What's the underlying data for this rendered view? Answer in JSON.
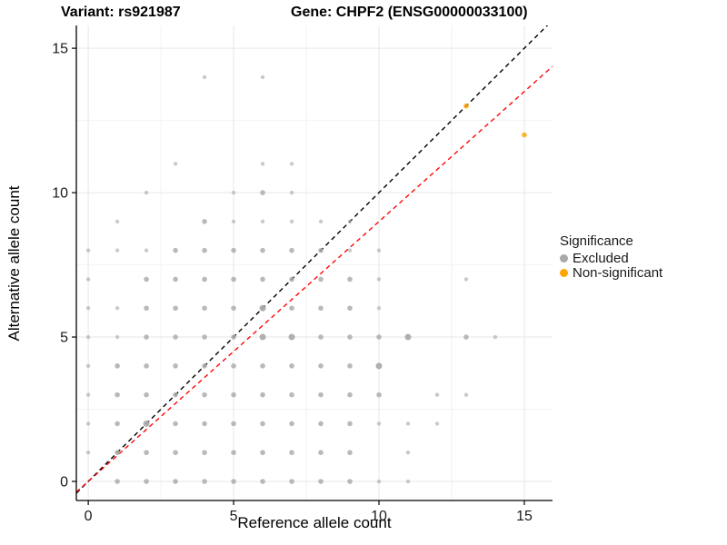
{
  "titles": {
    "left": "Variant: rs921987",
    "right": "Gene: CHPF2 (ENSG00000033100)"
  },
  "chart_data": {
    "type": "scatter",
    "xlabel": "Reference allele count",
    "ylabel": "Alternative allele count",
    "x_ticks": [
      0,
      5,
      10,
      15
    ],
    "y_ticks": [
      0,
      5,
      10,
      15
    ],
    "xlim": [
      -0.41,
      15.97
    ],
    "ylim": [
      -0.66,
      15.79
    ],
    "grid": {
      "major": [
        0,
        5,
        10,
        15
      ],
      "minor": [
        2.5,
        7.5,
        12.5
      ],
      "major_color": "#e7e7e7",
      "minor_color": "#f2f2f2"
    },
    "legend": {
      "title": "Significance",
      "items": [
        {
          "label": "Excluded",
          "color": "#A9A9A9"
        },
        {
          "label": "Non-significant",
          "color": "#FFA500"
        }
      ]
    },
    "lines": [
      {
        "name": "identity",
        "color": "#000000",
        "dashed": true,
        "slope": 1.0,
        "intercept": 0
      },
      {
        "name": "fit",
        "color": "#FF0000",
        "dashed": true,
        "slope": 0.9,
        "intercept": 0
      }
    ],
    "series": [
      {
        "name": "Excluded",
        "color": "#A9A9A9",
        "points": [
          [
            1,
            0,
            2
          ],
          [
            2,
            0,
            2
          ],
          [
            3,
            0,
            2
          ],
          [
            4,
            0,
            2
          ],
          [
            5,
            0,
            2
          ],
          [
            6,
            0,
            2
          ],
          [
            7,
            0,
            2
          ],
          [
            8,
            0,
            2
          ],
          [
            9,
            0,
            2
          ],
          [
            10,
            0,
            1
          ],
          [
            11,
            0,
            1
          ],
          [
            0,
            1,
            1
          ],
          [
            1,
            1,
            2
          ],
          [
            2,
            1,
            2
          ],
          [
            3,
            1,
            2
          ],
          [
            4,
            1,
            2
          ],
          [
            5,
            1,
            2
          ],
          [
            6,
            1,
            2
          ],
          [
            7,
            1,
            2
          ],
          [
            8,
            1,
            2
          ],
          [
            9,
            1,
            2
          ],
          [
            11,
            1,
            1
          ],
          [
            0,
            2,
            1
          ],
          [
            1,
            2,
            2
          ],
          [
            2,
            2,
            3
          ],
          [
            3,
            2,
            2
          ],
          [
            4,
            2,
            2
          ],
          [
            5,
            2,
            2
          ],
          [
            6,
            2,
            2
          ],
          [
            7,
            2,
            2
          ],
          [
            8,
            2,
            2
          ],
          [
            9,
            2,
            2
          ],
          [
            10,
            2,
            1
          ],
          [
            11,
            2,
            1
          ],
          [
            12,
            2,
            1
          ],
          [
            0,
            3,
            1
          ],
          [
            1,
            3,
            2
          ],
          [
            2,
            3,
            2
          ],
          [
            3,
            3,
            2
          ],
          [
            4,
            3,
            2
          ],
          [
            5,
            3,
            2
          ],
          [
            6,
            3,
            2
          ],
          [
            7,
            3,
            2
          ],
          [
            8,
            3,
            2
          ],
          [
            9,
            3,
            2
          ],
          [
            10,
            3,
            2
          ],
          [
            12,
            3,
            1
          ],
          [
            13,
            3,
            1
          ],
          [
            0,
            4,
            1
          ],
          [
            1,
            4,
            2
          ],
          [
            2,
            4,
            2
          ],
          [
            3,
            4,
            2
          ],
          [
            4,
            4,
            2
          ],
          [
            5,
            4,
            2
          ],
          [
            6,
            4,
            2
          ],
          [
            7,
            4,
            2
          ],
          [
            8,
            4,
            2
          ],
          [
            9,
            4,
            2
          ],
          [
            10,
            4,
            3
          ],
          [
            0,
            5,
            1
          ],
          [
            1,
            5,
            1
          ],
          [
            2,
            5,
            2
          ],
          [
            3,
            5,
            2
          ],
          [
            4,
            5,
            2
          ],
          [
            5,
            5,
            2
          ],
          [
            6,
            5,
            3
          ],
          [
            7,
            5,
            3
          ],
          [
            8,
            5,
            2
          ],
          [
            9,
            5,
            2
          ],
          [
            10,
            5,
            2
          ],
          [
            11,
            5,
            3
          ],
          [
            13,
            5,
            2
          ],
          [
            14,
            5,
            1
          ],
          [
            0,
            6,
            1
          ],
          [
            1,
            6,
            1
          ],
          [
            2,
            6,
            2
          ],
          [
            3,
            6,
            2
          ],
          [
            4,
            6,
            2
          ],
          [
            5,
            6,
            2
          ],
          [
            6,
            6,
            3
          ],
          [
            7,
            6,
            2
          ],
          [
            8,
            6,
            2
          ],
          [
            9,
            6,
            2
          ],
          [
            10,
            6,
            1
          ],
          [
            0,
            7,
            1
          ],
          [
            2,
            7,
            2
          ],
          [
            3,
            7,
            2
          ],
          [
            4,
            7,
            2
          ],
          [
            5,
            7,
            2
          ],
          [
            6,
            7,
            2
          ],
          [
            7,
            7,
            2
          ],
          [
            8,
            7,
            2
          ],
          [
            9,
            7,
            2
          ],
          [
            10,
            7,
            1
          ],
          [
            13,
            7,
            1
          ],
          [
            0,
            8,
            1
          ],
          [
            1,
            8,
            1
          ],
          [
            2,
            8,
            1
          ],
          [
            3,
            8,
            2
          ],
          [
            4,
            8,
            2
          ],
          [
            5,
            8,
            2
          ],
          [
            6,
            8,
            2
          ],
          [
            7,
            8,
            2
          ],
          [
            8,
            8,
            2
          ],
          [
            9,
            8,
            1
          ],
          [
            10,
            8,
            1
          ],
          [
            1,
            9,
            1
          ],
          [
            4,
            9,
            2
          ],
          [
            5,
            9,
            1
          ],
          [
            6,
            9,
            1
          ],
          [
            7,
            9,
            1
          ],
          [
            8,
            9,
            1
          ],
          [
            9,
            9,
            1
          ],
          [
            2,
            10,
            1
          ],
          [
            5,
            10,
            1
          ],
          [
            6,
            10,
            2
          ],
          [
            7,
            10,
            1
          ],
          [
            3,
            11,
            1
          ],
          [
            6,
            11,
            1
          ],
          [
            7,
            11,
            1
          ],
          [
            4,
            14,
            1
          ],
          [
            6,
            14,
            1
          ]
        ]
      },
      {
        "name": "Non-significant",
        "color": "#FFA500",
        "points": [
          [
            13,
            13,
            2
          ],
          [
            15,
            12,
            2
          ]
        ]
      }
    ]
  }
}
